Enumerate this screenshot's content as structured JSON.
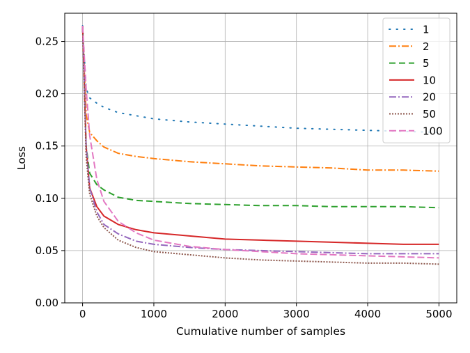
{
  "chart_data": {
    "type": "line",
    "title": "",
    "xlabel": "Cumulative number of samples",
    "ylabel": "Loss",
    "xlim": [
      -250,
      5250
    ],
    "ylim": [
      0.0,
      0.277
    ],
    "xticks": [
      0,
      1000,
      2000,
      3000,
      4000,
      5000
    ],
    "xtick_labels": [
      "0",
      "1000",
      "2000",
      "3000",
      "4000",
      "5000"
    ],
    "yticks": [
      0.0,
      0.05,
      0.1,
      0.15,
      0.2,
      0.25
    ],
    "ytick_labels": [
      "0.00",
      "0.05",
      "0.10",
      "0.15",
      "0.20",
      "0.25"
    ],
    "grid": true,
    "legend_position": "top-right",
    "series": [
      {
        "name": "1",
        "color": "#1f77b4",
        "dash": "1.5,9",
        "x": [
          0,
          50,
          100,
          200,
          300,
          500,
          750,
          1000,
          1500,
          2000,
          2500,
          3000,
          3500,
          4000,
          4500,
          5000
        ],
        "y": [
          0.265,
          0.205,
          0.196,
          0.191,
          0.187,
          0.182,
          0.179,
          0.176,
          0.173,
          0.171,
          0.169,
          0.167,
          0.166,
          0.165,
          0.164,
          0.163
        ]
      },
      {
        "name": "2",
        "color": "#ff7f0e",
        "dash": "10,3,2,3",
        "x": [
          0,
          50,
          100,
          200,
          300,
          500,
          750,
          1000,
          1500,
          2000,
          2500,
          3000,
          3500,
          4000,
          4500,
          5000
        ],
        "y": [
          0.265,
          0.18,
          0.163,
          0.155,
          0.149,
          0.143,
          0.14,
          0.138,
          0.135,
          0.133,
          0.131,
          0.13,
          0.129,
          0.127,
          0.127,
          0.126
        ]
      },
      {
        "name": "5",
        "color": "#2ca02c",
        "dash": "9,5",
        "x": [
          0,
          50,
          100,
          200,
          300,
          500,
          750,
          1000,
          1500,
          2000,
          2500,
          3000,
          3500,
          4000,
          4500,
          5000
        ],
        "y": [
          0.265,
          0.15,
          0.124,
          0.113,
          0.108,
          0.101,
          0.098,
          0.097,
          0.095,
          0.094,
          0.093,
          0.093,
          0.092,
          0.092,
          0.092,
          0.091
        ]
      },
      {
        "name": "10",
        "color": "#d62728",
        "dash": "",
        "x": [
          0,
          50,
          100,
          200,
          300,
          500,
          750,
          1000,
          1500,
          2000,
          2500,
          3000,
          3500,
          4000,
          4500,
          5000
        ],
        "y": [
          0.265,
          0.15,
          0.11,
          0.092,
          0.083,
          0.075,
          0.07,
          0.067,
          0.064,
          0.061,
          0.06,
          0.059,
          0.058,
          0.057,
          0.056,
          0.056
        ]
      },
      {
        "name": "20",
        "color": "#9467bd",
        "dash": "10,3,2,3",
        "x": [
          0,
          50,
          100,
          200,
          300,
          500,
          750,
          1000,
          1500,
          2000,
          2500,
          3000,
          3500,
          4000,
          4500,
          5000
        ],
        "y": [
          0.265,
          0.15,
          0.11,
          0.087,
          0.075,
          0.066,
          0.059,
          0.056,
          0.053,
          0.051,
          0.05,
          0.049,
          0.048,
          0.047,
          0.047,
          0.047
        ]
      },
      {
        "name": "50",
        "color": "#8c564b",
        "dash": "2,2",
        "x": [
          0,
          50,
          100,
          200,
          300,
          500,
          750,
          1000,
          1500,
          2000,
          2500,
          3000,
          3500,
          4000,
          4500,
          5000
        ],
        "y": [
          0.265,
          0.14,
          0.104,
          0.083,
          0.072,
          0.06,
          0.053,
          0.049,
          0.046,
          0.043,
          0.041,
          0.04,
          0.039,
          0.038,
          0.038,
          0.037
        ]
      },
      {
        "name": "100",
        "color": "#e377c2",
        "dash": "10,4",
        "x": [
          0,
          50,
          100,
          200,
          300,
          500,
          750,
          1000,
          1500,
          2000,
          2500,
          3000,
          3500,
          4000,
          4500,
          5000
        ],
        "y": [
          0.265,
          0.205,
          0.16,
          0.118,
          0.097,
          0.078,
          0.067,
          0.06,
          0.054,
          0.051,
          0.049,
          0.047,
          0.046,
          0.045,
          0.044,
          0.043
        ]
      }
    ]
  }
}
